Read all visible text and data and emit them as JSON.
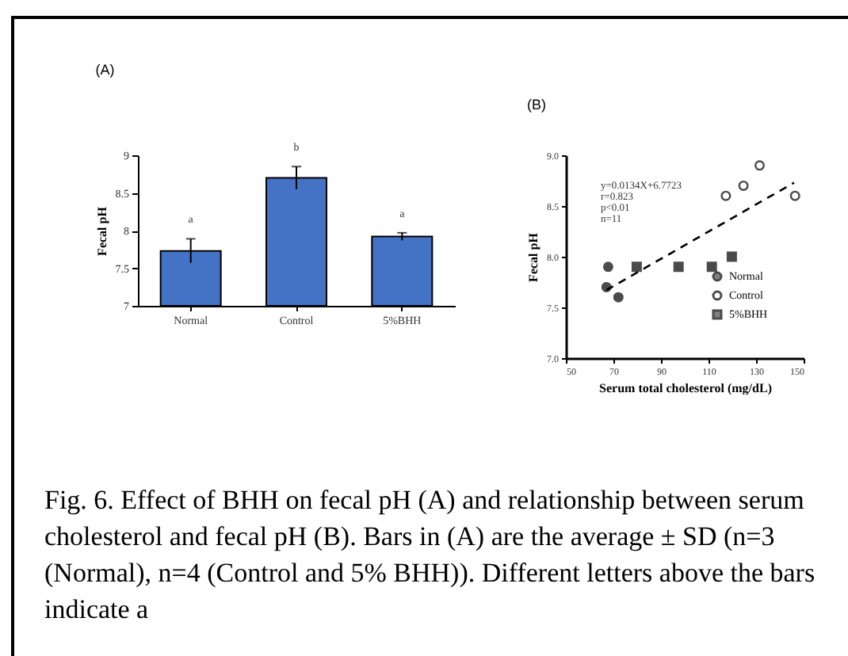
{
  "chart_data": [
    {
      "type": "bar",
      "title": "(A)",
      "ylabel": "Fecal pH",
      "categories": [
        "Normal",
        "Control",
        "5%BHH"
      ],
      "values": [
        7.73,
        8.7,
        7.92
      ],
      "errors": [
        0.16,
        0.15,
        0.05
      ],
      "color": "#4472c4",
      "ylim": [
        7,
        9
      ],
      "yticks": [
        7,
        7.5,
        8,
        8.5,
        9
      ],
      "value_labels": [
        "a",
        "b",
        "a"
      ],
      "annotations": [
        "Fig. 6. Effect of BHH on fecal pH (A) and relationship between serum cholesterol and fecal pH (B). Bars in (A) are the average ± SD (n=3 (Normal), n=4 (Control and 5% BHH)). Different letters above the bars indicate a"
      ]
    },
    {
      "type": "scatter",
      "title": "(B)",
      "xlabel": "Serum total cholesterol (mg/dL)",
      "ylabel": "Fecal pH",
      "xlim": [
        50,
        150
      ],
      "xticks": [
        50,
        70,
        90,
        110,
        130,
        150
      ],
      "ylim": [
        7,
        9
      ],
      "yticks": [
        {
          "value": 7,
          "label": "7.0"
        },
        {
          "value": 7.5,
          "label": "7.5"
        },
        {
          "value": 8,
          "label": "8.0"
        },
        {
          "value": 8.5,
          "label": "8.5"
        },
        {
          "value": 9,
          "label": "9.0"
        }
      ],
      "legend": "bottom right",
      "annotations": [
        "y=0.0134X+6.7723",
        "r=0.823",
        "p<0.01",
        "n=11"
      ],
      "series": [
        {
          "name": "Normal",
          "color": "#000000",
          "marker": "circle",
          "x": [
            67.8,
            67.1,
            72.1
          ],
          "values": [
            7.9,
            7.7,
            7.6
          ]
        },
        {
          "name": "Control",
          "color": "#ffffff",
          "marker": "circle",
          "x": [
            117.3,
            124.7,
            131.5,
            146.4
          ],
          "values": [
            8.6,
            8.7,
            8.9,
            8.6
          ]
        },
        {
          "name": "5%BHH",
          "color": "#000000",
          "marker": "square",
          "x": [
            79.8,
            97.4,
            111.4,
            119.8
          ],
          "values": [
            7.9,
            7.9,
            7.9,
            8.0
          ]
        },
        {
          "type": "line",
          "color": "#000000",
          "line_style": "dashed",
          "x": [
            67,
            146
          ],
          "values": [
            7.67,
            8.73
          ]
        }
      ]
    }
  ]
}
